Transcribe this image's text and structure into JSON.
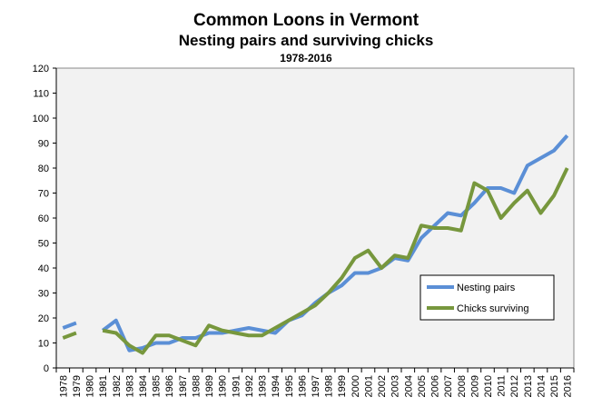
{
  "chart_data": {
    "type": "line",
    "title": "Common Loons in Vermont",
    "subtitle": "Nesting pairs and surviving chicks",
    "subtitle2": "1978-2016",
    "xlabel": "",
    "ylabel": "",
    "ylim": [
      0,
      120
    ],
    "yticks": [
      0,
      10,
      20,
      30,
      40,
      50,
      60,
      70,
      80,
      90,
      100,
      110,
      120
    ],
    "grid": false,
    "legend_position": "center-right",
    "categories": [
      "1978",
      "1979",
      "1980",
      "1981",
      "1982",
      "1983",
      "1984",
      "1985",
      "1986",
      "1987",
      "1988",
      "1989",
      "1990",
      "1991",
      "1992",
      "1993",
      "1994",
      "1995",
      "1996",
      "1997",
      "1998",
      "1999",
      "2000",
      "2001",
      "2002",
      "2003",
      "2004",
      "2005",
      "2006",
      "2007",
      "2008",
      "2009",
      "2010",
      "2011",
      "2012",
      "2013",
      "2014",
      "2015",
      "2016"
    ],
    "series": [
      {
        "name": "Nesting pairs",
        "color": "#5b8fd6",
        "values": [
          16,
          18,
          null,
          15,
          19,
          7,
          8,
          10,
          10,
          12,
          12,
          14,
          14,
          15,
          16,
          15,
          14,
          19,
          21,
          26,
          30,
          33,
          38,
          38,
          40,
          44,
          43,
          52,
          57,
          62,
          61,
          66,
          72,
          72,
          70,
          81,
          84,
          87,
          93
        ]
      },
      {
        "name": "Chicks surviving",
        "color": "#77973d",
        "values": [
          12,
          14,
          null,
          15,
          14,
          9,
          6,
          13,
          13,
          11,
          9,
          17,
          15,
          14,
          13,
          13,
          16,
          19,
          22,
          25,
          30,
          36,
          44,
          47,
          40,
          45,
          44,
          57,
          56,
          56,
          55,
          74,
          71,
          60,
          66,
          71,
          62,
          69,
          80
        ]
      }
    ]
  }
}
